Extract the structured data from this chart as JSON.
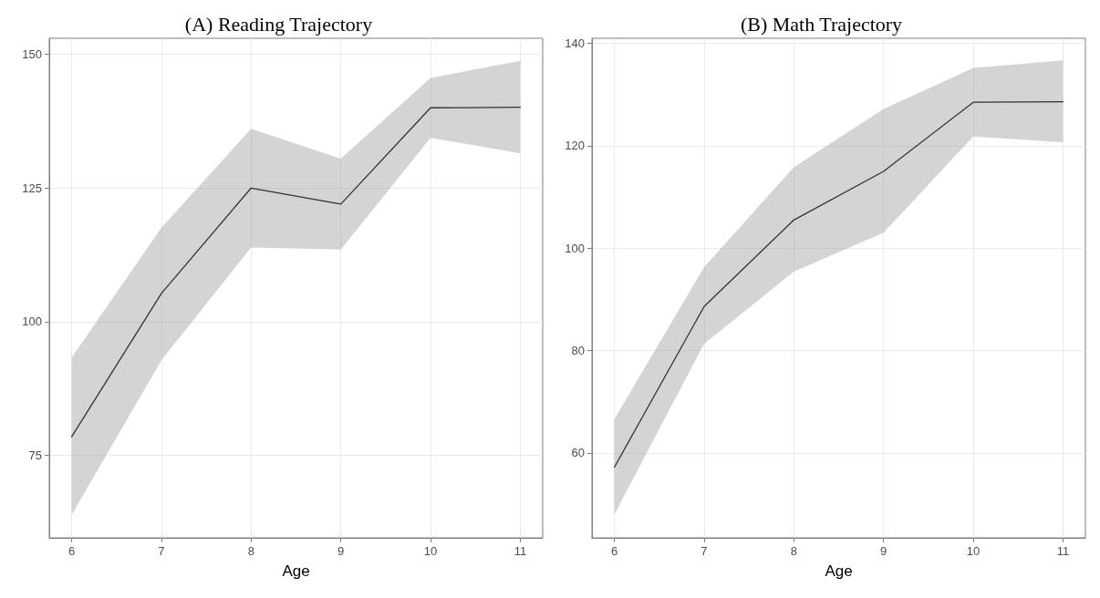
{
  "chart_data": [
    {
      "type": "line",
      "title": "(A) Reading Trajectory",
      "xlabel": "Age",
      "x": [
        6,
        7,
        8,
        9,
        10,
        11
      ],
      "xlim": [
        5.75,
        11.25
      ],
      "xticks": [
        6,
        7,
        8,
        9,
        10,
        11
      ],
      "ylim": [
        59.6,
        153
      ],
      "yticks": [
        75,
        100,
        125,
        150
      ],
      "grid": true,
      "marker": "none",
      "line_style": "solid",
      "series": [
        {
          "color": "#333333",
          "values": [
            78.5,
            105.3,
            125,
            122,
            140,
            140.1
          ],
          "lower": [
            63.9,
            92.8,
            113.9,
            113.5,
            134.4,
            131.5
          ],
          "upper": [
            93.3,
            117.6,
            136.1,
            130.5,
            145.6,
            148.8
          ]
        }
      ]
    },
    {
      "type": "line",
      "title": "(B) Math Trajectory",
      "xlabel": "Age",
      "x": [
        6,
        7,
        8,
        9,
        10,
        11
      ],
      "xlim": [
        5.75,
        11.25
      ],
      "xticks": [
        6,
        7,
        8,
        9,
        10,
        11
      ],
      "ylim": [
        43.4,
        141
      ],
      "yticks": [
        60,
        80,
        100,
        120,
        140
      ],
      "grid": true,
      "marker": "none",
      "line_style": "solid",
      "series": [
        {
          "color": "#333333",
          "values": [
            57.2,
            88.6,
            105.5,
            115,
            128.5,
            128.6
          ],
          "lower": [
            48,
            81.3,
            95.4,
            103,
            121.8,
            120.7
          ],
          "upper": [
            66.6,
            96.3,
            115.8,
            127.2,
            135.2,
            136.7
          ]
        }
      ]
    }
  ]
}
